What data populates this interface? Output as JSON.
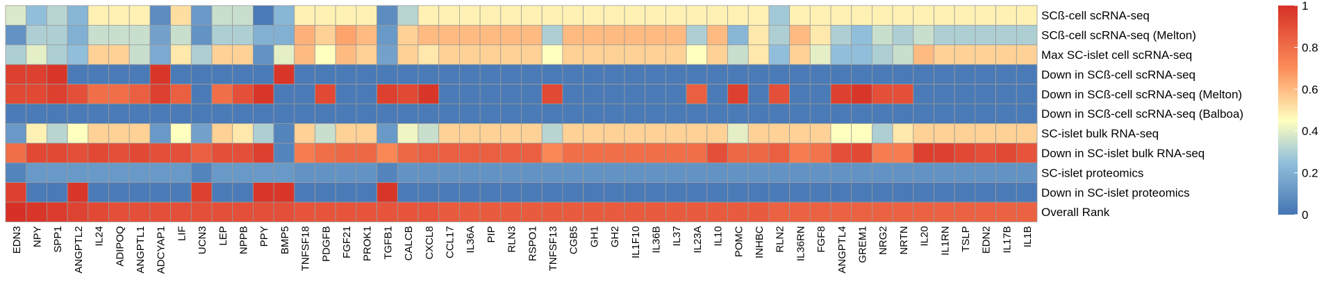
{
  "chart_data": {
    "type": "heatmap",
    "title": "",
    "columns": [
      "EDN3",
      "NPY",
      "SPP1",
      "ANGPTL2",
      "IL24",
      "ADIPOQ",
      "ANGPTL1",
      "ADCYAP1",
      "LIF",
      "UCN3",
      "LEP",
      "NPPB",
      "PPY",
      "BMP5",
      "TNFSF18",
      "PDGFB",
      "FGF21",
      "PROK1",
      "TGFB1",
      "CALCB",
      "CXCL8",
      "CCL17",
      "IL36A",
      "PIP",
      "RLN3",
      "RSPO1",
      "TNFSF13",
      "CGB5",
      "GH1",
      "GH2",
      "IL1F10",
      "IL36B",
      "IL37",
      "IL23A",
      "IL10",
      "POMC",
      "INHBC",
      "RLN2",
      "IL36RN",
      "FGF8",
      "ANGPTL4",
      "GREM1",
      "NRG2",
      "NRTN",
      "IL20",
      "IL1RN",
      "TSLP",
      "EDN2",
      "IL17B",
      "IL1B"
    ],
    "rows": [
      {
        "name": "SCß-cell scRNA-seq",
        "values": [
          0.38,
          0.25,
          0.32,
          0.22,
          0.48,
          0.48,
          0.48,
          0.08,
          0.52,
          0.12,
          0.35,
          0.35,
          0.02,
          0.22,
          0.48,
          0.48,
          0.48,
          0.48,
          0.08,
          0.32,
          0.48,
          0.48,
          0.48,
          0.48,
          0.48,
          0.48,
          0.48,
          0.48,
          0.48,
          0.48,
          0.48,
          0.48,
          0.48,
          0.48,
          0.48,
          0.48,
          0.48,
          0.28,
          0.48,
          0.48,
          0.48,
          0.48,
          0.48,
          0.48,
          0.48,
          0.48,
          0.48,
          0.48,
          0.48,
          0.48
        ]
      },
      {
        "name": "SCß-cell scRNA-seq (Melton)",
        "values": [
          0.1,
          0.3,
          0.3,
          0.2,
          0.35,
          0.35,
          0.35,
          0.15,
          0.35,
          0.1,
          0.3,
          0.3,
          0.2,
          0.2,
          0.62,
          0.55,
          0.65,
          0.6,
          0.12,
          0.55,
          0.6,
          0.6,
          0.6,
          0.6,
          0.6,
          0.6,
          0.3,
          0.6,
          0.6,
          0.6,
          0.6,
          0.6,
          0.6,
          0.3,
          0.6,
          0.22,
          0.5,
          0.3,
          0.6,
          0.5,
          0.3,
          0.25,
          0.35,
          0.3,
          0.35,
          0.3,
          0.3,
          0.3,
          0.3,
          0.3
        ]
      },
      {
        "name": "Max SC-islet cell scRNA-seq",
        "values": [
          0.3,
          0.4,
          0.3,
          0.25,
          0.55,
          0.55,
          0.35,
          0.18,
          0.5,
          0.3,
          0.55,
          0.55,
          0.1,
          0.4,
          0.6,
          0.45,
          0.6,
          0.55,
          0.15,
          0.55,
          0.5,
          0.55,
          0.55,
          0.55,
          0.55,
          0.55,
          0.45,
          0.55,
          0.55,
          0.55,
          0.55,
          0.55,
          0.55,
          0.45,
          0.55,
          0.35,
          0.5,
          0.25,
          0.55,
          0.4,
          0.25,
          0.25,
          0.3,
          0.35,
          0.6,
          0.55,
          0.55,
          0.55,
          0.55,
          0.55
        ]
      },
      {
        "name": "Down in SCß-cell scRNA-seq",
        "values": [
          0.95,
          0.95,
          0.98,
          0.02,
          0.02,
          0.02,
          0.02,
          0.98,
          0.02,
          0.02,
          0.02,
          0.02,
          0.02,
          0.98,
          0.02,
          0.02,
          0.02,
          0.02,
          0.02,
          0.02,
          0.02,
          0.02,
          0.02,
          0.02,
          0.02,
          0.02,
          0.02,
          0.02,
          0.02,
          0.02,
          0.02,
          0.02,
          0.02,
          0.02,
          0.02,
          0.02,
          0.02,
          0.02,
          0.02,
          0.02,
          0.02,
          0.02,
          0.02,
          0.02,
          0.02,
          0.02,
          0.02,
          0.02,
          0.02,
          0.02
        ]
      },
      {
        "name": "Down in SCß-cell scRNA-seq (Melton)",
        "values": [
          0.92,
          0.92,
          0.95,
          0.9,
          0.8,
          0.8,
          0.85,
          0.95,
          0.85,
          0.02,
          0.8,
          0.9,
          0.98,
          0.02,
          0.02,
          0.92,
          0.02,
          0.02,
          0.95,
          0.92,
          0.98,
          0.02,
          0.02,
          0.02,
          0.02,
          0.02,
          0.92,
          0.02,
          0.02,
          0.02,
          0.02,
          0.02,
          0.02,
          0.85,
          0.02,
          0.95,
          0.02,
          0.9,
          0.02,
          0.02,
          0.95,
          0.98,
          0.9,
          0.9,
          0.02,
          0.02,
          0.02,
          0.02,
          0.02,
          0.02
        ]
      },
      {
        "name": "Down in SCß-cell scRNA-seq (Balboa)",
        "values": [
          0.02,
          0.02,
          0.02,
          0.02,
          0.02,
          0.02,
          0.02,
          0.02,
          0.02,
          0.02,
          0.02,
          0.02,
          0.02,
          0.02,
          0.02,
          0.02,
          0.02,
          0.02,
          0.02,
          0.02,
          0.02,
          0.02,
          0.02,
          0.02,
          0.02,
          0.02,
          0.02,
          0.02,
          0.02,
          0.02,
          0.02,
          0.02,
          0.02,
          0.02,
          0.02,
          0.02,
          0.02,
          0.02,
          0.02,
          0.02,
          0.02,
          0.02,
          0.02,
          0.02,
          0.02,
          0.02,
          0.02,
          0.02,
          0.02,
          0.02
        ]
      },
      {
        "name": "SC-islet bulk RNA-seq",
        "values": [
          0.12,
          0.48,
          0.32,
          0.45,
          0.55,
          0.55,
          0.55,
          0.12,
          0.45,
          0.15,
          0.55,
          0.5,
          0.3,
          0.05,
          0.55,
          0.35,
          0.55,
          0.55,
          0.12,
          0.42,
          0.35,
          0.55,
          0.55,
          0.55,
          0.55,
          0.55,
          0.32,
          0.55,
          0.55,
          0.55,
          0.55,
          0.55,
          0.55,
          0.55,
          0.55,
          0.4,
          0.55,
          0.55,
          0.55,
          0.55,
          0.45,
          0.45,
          0.3,
          0.5,
          0.55,
          0.55,
          0.55,
          0.55,
          0.55,
          0.55
        ]
      },
      {
        "name": "Down in SC-islet bulk RNA-seq",
        "values": [
          0.8,
          0.92,
          0.92,
          0.9,
          0.92,
          0.9,
          0.92,
          0.9,
          0.9,
          0.85,
          0.9,
          0.9,
          0.95,
          0.05,
          0.75,
          0.8,
          0.82,
          0.82,
          0.72,
          0.82,
          0.85,
          0.85,
          0.85,
          0.85,
          0.85,
          0.85,
          0.72,
          0.8,
          0.8,
          0.8,
          0.8,
          0.8,
          0.8,
          0.8,
          0.9,
          0.82,
          0.82,
          0.85,
          0.75,
          0.78,
          0.9,
          0.92,
          0.75,
          0.75,
          0.95,
          0.95,
          0.92,
          0.9,
          0.92,
          0.88
        ]
      },
      {
        "name": "SC-islet proteomics",
        "values": [
          0.05,
          0.12,
          0.12,
          0.12,
          0.12,
          0.12,
          0.12,
          0.12,
          0.12,
          0.05,
          0.12,
          0.12,
          0.12,
          0.12,
          0.1,
          0.1,
          0.1,
          0.1,
          0.05,
          0.1,
          0.1,
          0.1,
          0.1,
          0.1,
          0.1,
          0.1,
          0.1,
          0.1,
          0.1,
          0.1,
          0.1,
          0.1,
          0.1,
          0.1,
          0.1,
          0.1,
          0.1,
          0.1,
          0.1,
          0.1,
          0.1,
          0.1,
          0.1,
          0.1,
          0.1,
          0.1,
          0.1,
          0.1,
          0.1,
          0.1
        ]
      },
      {
        "name": "Down in SC-islet proteomics",
        "values": [
          0.95,
          0.02,
          0.02,
          0.98,
          0.02,
          0.02,
          0.02,
          0.02,
          0.02,
          0.95,
          0.02,
          0.02,
          0.98,
          0.98,
          0.02,
          0.02,
          0.02,
          0.02,
          0.98,
          0.02,
          0.02,
          0.02,
          0.02,
          0.02,
          0.02,
          0.02,
          0.02,
          0.02,
          0.02,
          0.02,
          0.02,
          0.02,
          0.02,
          0.02,
          0.02,
          0.02,
          0.02,
          0.02,
          0.02,
          0.02,
          0.02,
          0.02,
          0.02,
          0.02,
          0.02,
          0.02,
          0.02,
          0.02,
          0.02,
          0.02
        ]
      },
      {
        "name": "Overall Rank",
        "values": [
          1.0,
          0.98,
          0.96,
          0.94,
          0.92,
          0.9,
          0.9,
          0.9,
          0.9,
          0.9,
          0.9,
          0.9,
          0.9,
          0.9,
          0.88,
          0.88,
          0.88,
          0.88,
          0.88,
          0.88,
          0.88,
          0.86,
          0.86,
          0.86,
          0.86,
          0.86,
          0.86,
          0.86,
          0.86,
          0.86,
          0.86,
          0.86,
          0.86,
          0.86,
          0.86,
          0.86,
          0.86,
          0.84,
          0.84,
          0.84,
          0.84,
          0.84,
          0.84,
          0.84,
          0.84,
          0.84,
          0.84,
          0.84,
          0.84,
          0.84
        ]
      }
    ],
    "color_scale": {
      "min": 0,
      "max": 1,
      "low": "#4575b4",
      "mid": "#ffffbf",
      "high": "#d73027"
    },
    "colorbar_ticks": [
      "0",
      "0.2",
      "0.4",
      "0.6",
      "0.8",
      "1"
    ],
    "grid": true,
    "legend_position": "right"
  }
}
